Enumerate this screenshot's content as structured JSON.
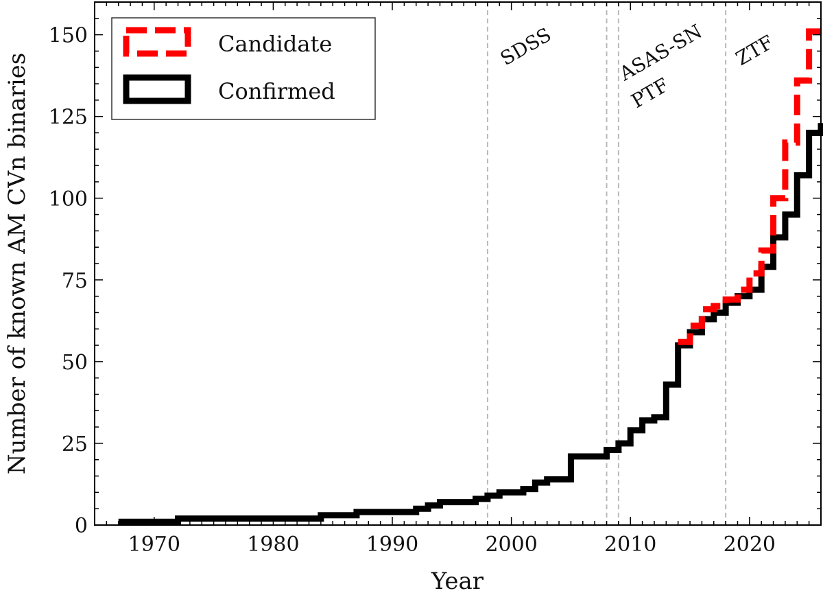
{
  "chart_data": {
    "type": "line",
    "title": "",
    "xlabel": "Year",
    "ylabel": "Number of known AM CVn binaries",
    "xlim": [
      1965,
      2026
    ],
    "ylim": [
      0,
      160
    ],
    "xticks": [
      1970,
      1980,
      1990,
      2000,
      2010,
      2020
    ],
    "yticks": [
      0,
      25,
      50,
      75,
      100,
      125,
      150
    ],
    "step": "post",
    "legend": {
      "position": "top-left",
      "entries": [
        "Candidate",
        "Confirmed"
      ]
    },
    "series": [
      {
        "name": "Candidate",
        "style": "dashed",
        "color": "#ff0000",
        "x": [
          2014,
          2015,
          2016,
          2017,
          2018,
          2019,
          2020,
          2021,
          2022,
          2023,
          2024,
          2025,
          2026
        ],
        "y": [
          56,
          61,
          66,
          67,
          69,
          72,
          77,
          84,
          100,
          117,
          136,
          151,
          152
        ]
      },
      {
        "name": "Confirmed",
        "style": "solid",
        "color": "#000000",
        "x": [
          1967,
          1972,
          1984,
          1987,
          1992,
          1993,
          1994,
          1997,
          1998,
          1999,
          2001,
          2002,
          2003,
          2005,
          2008,
          2009,
          2010,
          2011,
          2012,
          2013,
          2014,
          2015,
          2016,
          2017,
          2018,
          2019,
          2020,
          2021,
          2022,
          2023,
          2024,
          2025,
          2026
        ],
        "y": [
          1,
          2,
          3,
          4,
          5,
          6,
          7,
          8,
          9,
          10,
          11,
          13,
          14,
          21,
          23,
          25,
          29,
          32,
          33,
          43,
          55,
          59,
          63,
          65,
          68,
          70,
          72,
          79,
          88,
          95,
          107,
          120,
          123
        ]
      }
    ],
    "vlines": [
      {
        "x": 1998,
        "label": "SDSS"
      },
      {
        "x": 2008,
        "label": "ASAS-SN"
      },
      {
        "x": 2009,
        "label": "PTF"
      },
      {
        "x": 2018,
        "label": "ZTF"
      }
    ]
  }
}
